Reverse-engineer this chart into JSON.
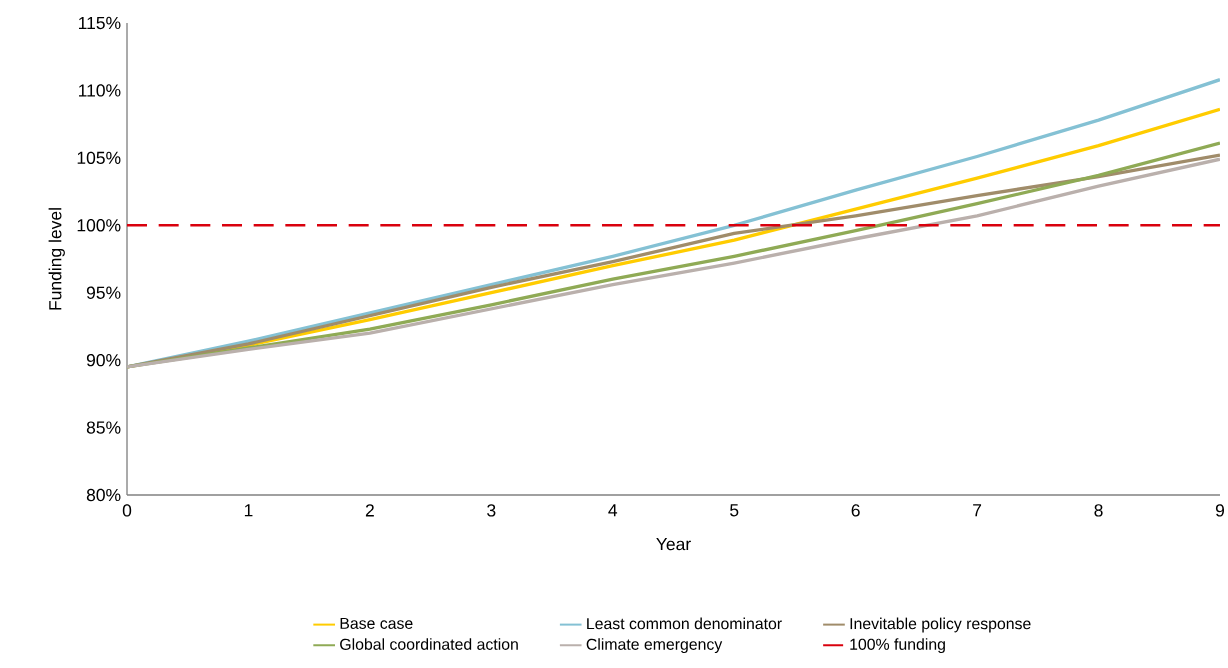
{
  "chart_data": {
    "type": "line",
    "xlabel": "Year",
    "ylabel": "Funding level",
    "x": [
      0,
      1,
      2,
      3,
      4,
      5,
      6,
      7,
      8,
      9
    ],
    "series": [
      {
        "name": "Base case",
        "color": "#ffcc00",
        "values": [
          89.5,
          91.1,
          93.0,
          95.0,
          97.0,
          98.9,
          101.2,
          103.5,
          105.9,
          108.6
        ]
      },
      {
        "name": "Least common denominator",
        "color": "#84c1d4",
        "values": [
          89.5,
          91.4,
          93.5,
          95.6,
          97.7,
          100.0,
          102.6,
          105.1,
          107.8,
          110.8
        ]
      },
      {
        "name": "Inevitable policy response",
        "color": "#a08c6a",
        "values": [
          89.5,
          91.2,
          93.3,
          95.4,
          97.3,
          99.4,
          100.7,
          102.2,
          103.6,
          105.2
        ]
      },
      {
        "name": "Global coordinated action",
        "color": "#8faa55",
        "values": [
          89.5,
          90.9,
          92.3,
          94.1,
          96.0,
          97.7,
          99.6,
          101.6,
          103.7,
          106.1
        ]
      },
      {
        "name": "Climate emergency",
        "color": "#bab0ac",
        "values": [
          89.5,
          90.8,
          92.0,
          93.8,
          95.6,
          97.2,
          99.0,
          100.7,
          102.9,
          104.9
        ]
      }
    ],
    "ref_lines": [
      {
        "axis": "y",
        "value": 100,
        "label": "100% funding",
        "color": "#d9000d",
        "line_style": "dashed"
      }
    ],
    "xlim": [
      0,
      9
    ],
    "xticks": [
      0,
      1,
      2,
      3,
      4,
      5,
      6,
      7,
      8,
      9
    ],
    "ylim": [
      80,
      115
    ],
    "yticks": [
      {
        "value": 80,
        "label": "80%"
      },
      {
        "value": 85,
        "label": "85%"
      },
      {
        "value": 90,
        "label": "90%"
      },
      {
        "value": 95,
        "label": "95%"
      },
      {
        "value": 100,
        "label": "100%"
      },
      {
        "value": 105,
        "label": "105%"
      },
      {
        "value": 110,
        "label": "110%"
      },
      {
        "value": 115,
        "label": "115%"
      }
    ],
    "legend": "bottom",
    "marker": "none",
    "line_style": "solid",
    "grid": false
  }
}
